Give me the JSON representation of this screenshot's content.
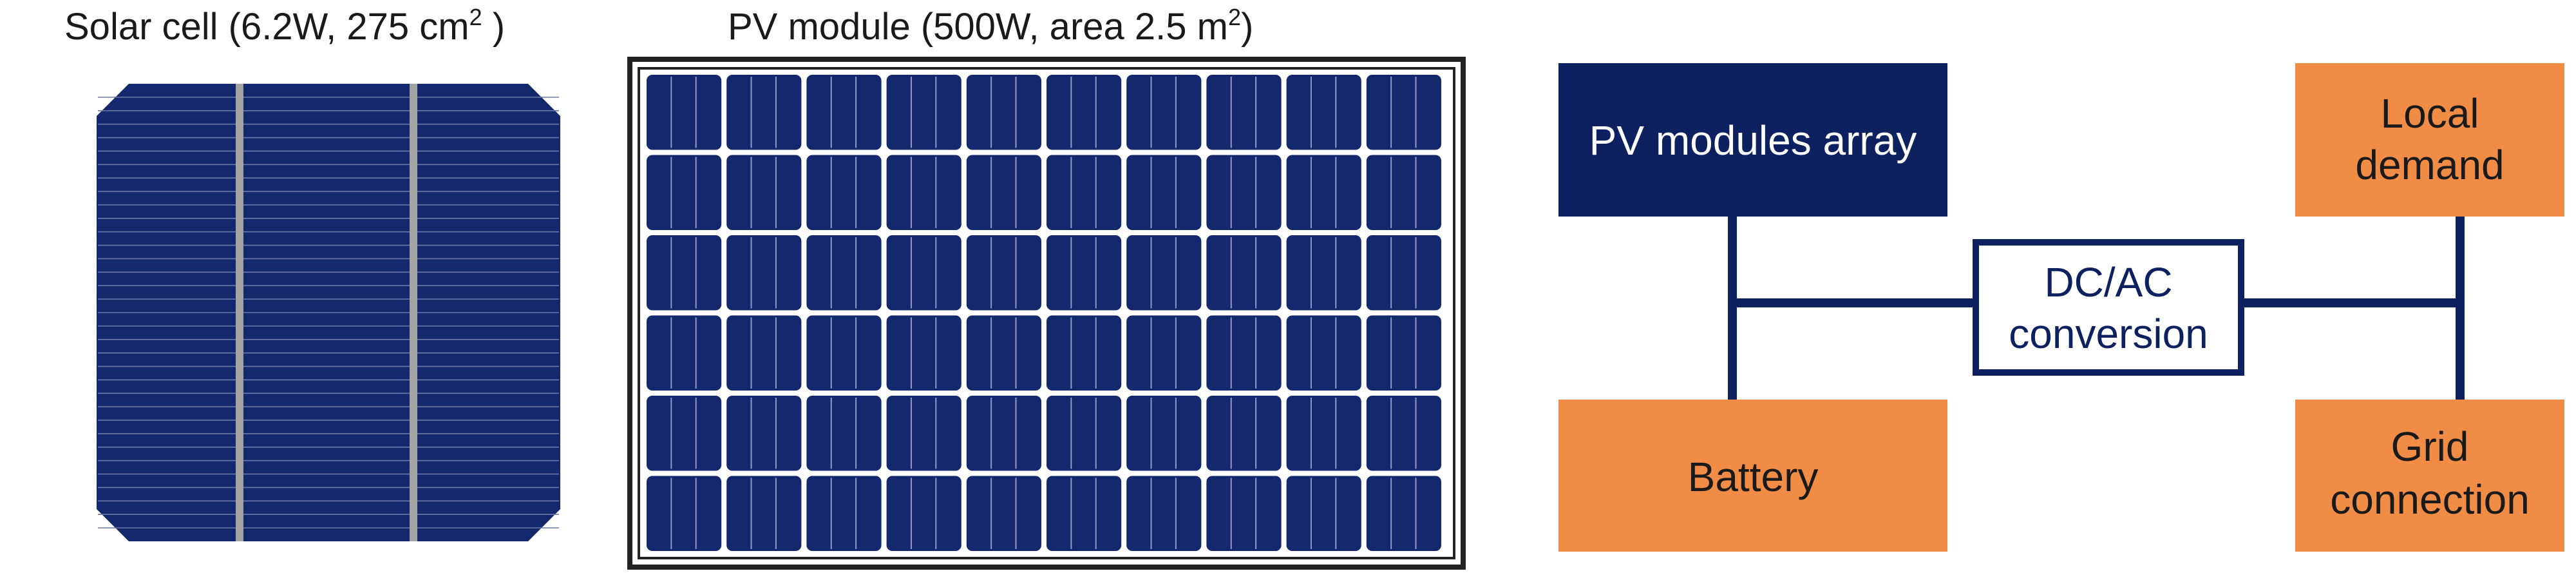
{
  "titles": {
    "solar_cell": {
      "text": "Solar cell (6.2W, 275 cm",
      "sup": "2",
      "close": ")"
    },
    "pv_module": {
      "text": "PV module (500W, area 2.5 m",
      "sup": "2",
      "close": ")"
    }
  },
  "boxes": {
    "pv_array": {
      "label": "PV modules array"
    },
    "battery": {
      "label": "Battery"
    },
    "dc_ac": {
      "line1": "DC/AC",
      "line2": "conversion"
    },
    "local_demand": {
      "line1": "Local",
      "line2": "demand"
    },
    "grid": {
      "line1": "Grid",
      "line2": "connection"
    }
  },
  "colors": {
    "navy": "#0d2060",
    "cell_blue": "#14286e",
    "busbar": "#a3a3a3",
    "orange": "#f08c46",
    "frame": "#222222"
  }
}
